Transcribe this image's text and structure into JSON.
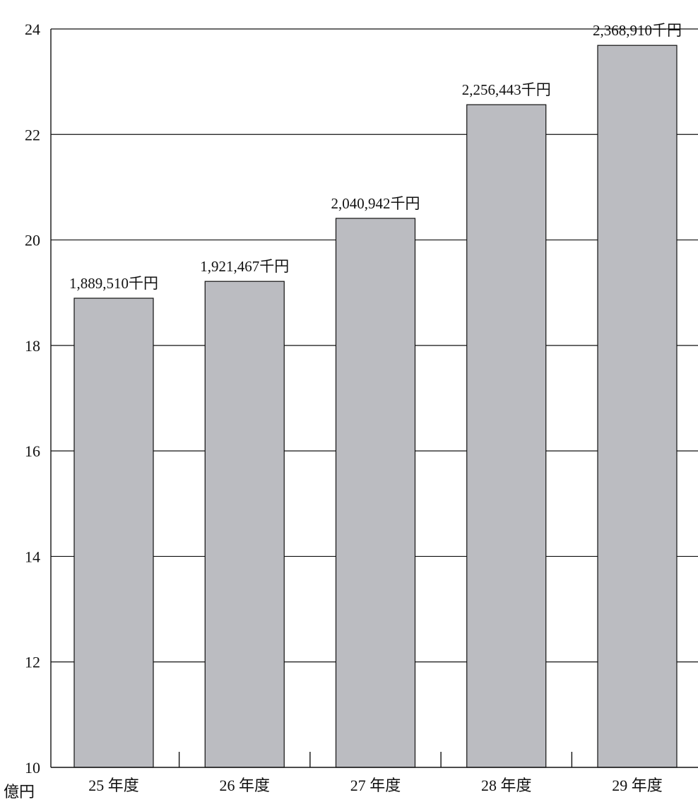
{
  "colors": {
    "bar_fill": "#bbbcc1",
    "line": "#111111",
    "background": "#ffffff"
  },
  "chart_data": {
    "type": "bar",
    "categories": [
      "25 年度",
      "26 年度",
      "27 年度",
      "28 年度",
      "29 年度"
    ],
    "values": [
      18.8951,
      19.21467,
      20.40942,
      22.56443,
      23.6891
    ],
    "value_labels": [
      "1,889,510千円",
      "1,921,467千円",
      "2,040,942千円",
      "2,256,443千円",
      "2,368,910千円"
    ],
    "y_unit_label": "億円",
    "ylim": [
      10,
      24
    ],
    "yticks": [
      10,
      12,
      14,
      16,
      18,
      20,
      22,
      24
    ],
    "grid": true
  }
}
